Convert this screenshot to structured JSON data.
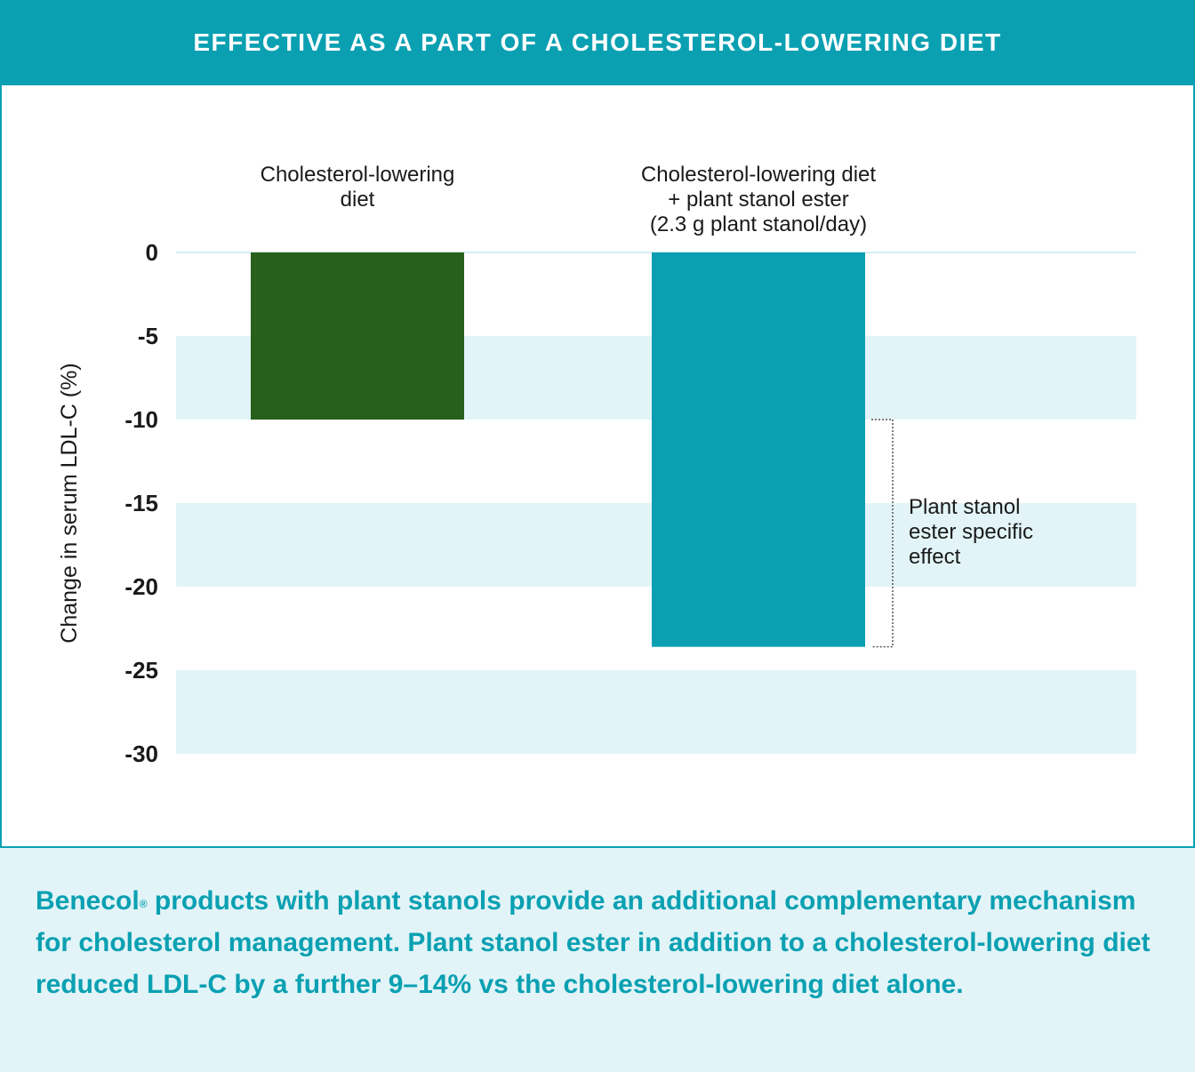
{
  "header": {
    "title": "EFFECTIVE AS A PART OF A CHOLESTEROL-LOWERING DIET"
  },
  "chart_data": {
    "type": "bar",
    "title": "EFFECTIVE AS A PART OF A CHOLESTEROL-LOWERING DIET",
    "ylabel": "Change in serum LDL-C (%)",
    "xlabel": "",
    "ylim": [
      -30,
      0
    ],
    "yticks": [
      0,
      -5,
      -10,
      -15,
      -20,
      -25,
      -30
    ],
    "ytick_labels": [
      "0",
      "-5",
      "-10",
      "-15",
      "-20",
      "-25",
      "-30"
    ],
    "categories": [
      [
        "Cholesterol-lowering",
        "diet"
      ],
      [
        "Cholesterol-lowering diet",
        "+ plant stanol ester",
        "(2.3 g plant stanol/day)"
      ]
    ],
    "values": [
      -10,
      -23.6
    ],
    "colors": [
      "#27601a",
      "#0aa0b2"
    ],
    "band_color": "#e2f4f7",
    "annotation": {
      "text": [
        "Plant stanol",
        "ester specific",
        "effect"
      ],
      "from": -10,
      "to": -23.6
    }
  },
  "footer": {
    "brand": "Benecol",
    "mark": "®",
    "text": " products with plant stanols provide an additional complementary mechanism for cholesterol management. Plant stanol ester in addition to a cholesterol-lowering diet reduced LDL-C by a further 9–14% vs the cholesterol-lowering diet alone."
  }
}
